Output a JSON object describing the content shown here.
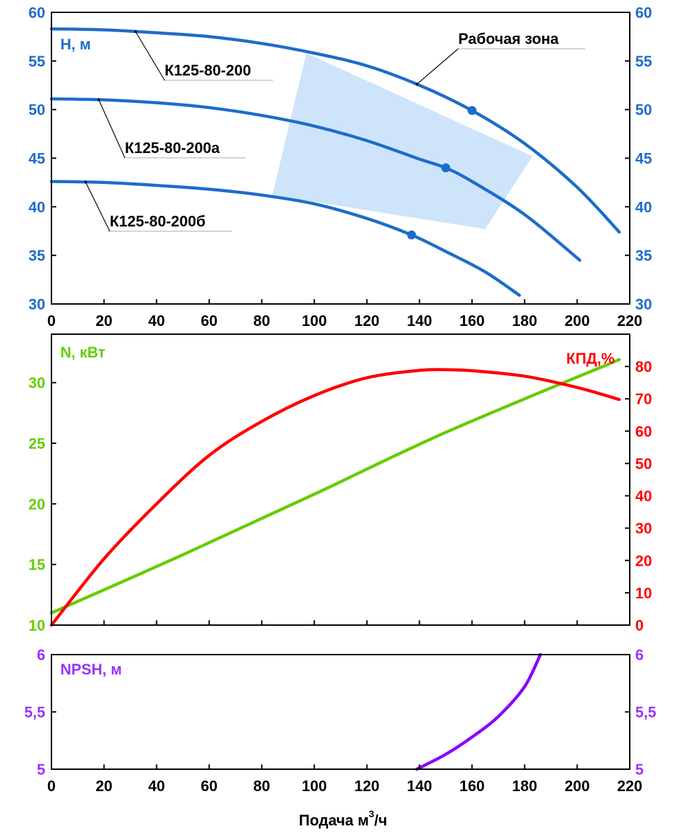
{
  "chart_data": [
    {
      "type": "line",
      "title": "",
      "ylabel": "H, м",
      "xlim": [
        0,
        220
      ],
      "ylim": [
        30,
        60
      ],
      "xticks": [
        "0",
        "20",
        "40",
        "60",
        "80",
        "100",
        "120",
        "140",
        "160",
        "180",
        "200",
        "220"
      ],
      "yticks": [
        "30",
        "35",
        "40",
        "45",
        "50",
        "55",
        "60"
      ],
      "grid": false,
      "work_zone_label": "Рабочая зона",
      "work_zone": [
        [
          97,
          55.8
        ],
        [
          183,
          45.2
        ],
        [
          165,
          37.7
        ],
        [
          84,
          41.2
        ]
      ],
      "series": [
        {
          "name": "К125-80-200",
          "x": [
            0,
            20,
            40,
            60,
            80,
            100,
            120,
            140,
            160,
            180,
            200,
            216
          ],
          "y": [
            58.3,
            58.2,
            57.9,
            57.5,
            56.8,
            55.8,
            54.5,
            52.5,
            49.9,
            46.5,
            42.0,
            37.4
          ],
          "point": [
            160,
            49.9
          ]
        },
        {
          "name": "К125-80-200а",
          "x": [
            0,
            20,
            40,
            60,
            80,
            100,
            120,
            140,
            150,
            160,
            180,
            201
          ],
          "y": [
            51.1,
            51.0,
            50.7,
            50.2,
            49.4,
            48.3,
            46.8,
            44.9,
            44.0,
            42.6,
            39.2,
            34.5
          ],
          "point": [
            150,
            44.0
          ]
        },
        {
          "name": "К125-80-200б",
          "x": [
            0,
            20,
            40,
            60,
            80,
            100,
            120,
            137,
            150,
            165,
            178
          ],
          "y": [
            42.6,
            42.5,
            42.2,
            41.8,
            41.2,
            40.3,
            38.8,
            37.1,
            35.4,
            33.3,
            30.9
          ],
          "point": [
            137,
            37.1
          ]
        }
      ]
    },
    {
      "type": "line",
      "title": "",
      "ylabel": "N, кВт",
      "y2label": "КПД,%",
      "xlim": [
        0,
        220
      ],
      "ylim": [
        10,
        34
      ],
      "y2lim": [
        0,
        90
      ],
      "yticks": [
        "10",
        "15",
        "20",
        "25",
        "30"
      ],
      "y2ticks": [
        "0",
        "10",
        "20",
        "30",
        "40",
        "50",
        "60",
        "70",
        "80"
      ],
      "grid": false,
      "series": [
        {
          "name": "N",
          "axis": "left",
          "color": "#66cc00",
          "x": [
            0,
            50,
            100,
            150,
            216
          ],
          "y": [
            11.0,
            15.8,
            20.8,
            25.9,
            31.9
          ]
        },
        {
          "name": "КПД",
          "axis": "right",
          "color": "#ff0000",
          "x": [
            0,
            20,
            40,
            60,
            80,
            100,
            120,
            140,
            150,
            160,
            180,
            200,
            216
          ],
          "y": [
            0,
            20.5,
            37.5,
            52.5,
            63.0,
            71.0,
            76.5,
            78.8,
            79.0,
            78.7,
            77.0,
            73.5,
            69.8
          ]
        }
      ]
    },
    {
      "type": "line",
      "title": "",
      "ylabel": "NPSH, м",
      "xlabel_main": "Подача м",
      "xlabel_sup": "3",
      "xlabel_tail": "/ч",
      "xlim": [
        0,
        220
      ],
      "ylim": [
        5,
        6
      ],
      "xticks": [
        "0",
        "20",
        "40",
        "60",
        "80",
        "100",
        "120",
        "140",
        "160",
        "180",
        "200",
        "220"
      ],
      "yticks": [
        "5",
        "5,5",
        "6"
      ],
      "grid": false,
      "series": [
        {
          "name": "NPSH",
          "color": "#8800ff",
          "x": [
            139,
            150,
            160,
            170,
            180,
            186
          ],
          "y": [
            5.0,
            5.13,
            5.28,
            5.46,
            5.72,
            6.0
          ]
        }
      ]
    }
  ],
  "colors": {
    "head": "#1e6cc8",
    "axis_blue": "#1e6cc8",
    "zone": "#cde4fb",
    "power": "#66cc00",
    "eff": "#ff0000",
    "npsh_line": "#8800ff",
    "npsh_text": "#9933ff"
  }
}
